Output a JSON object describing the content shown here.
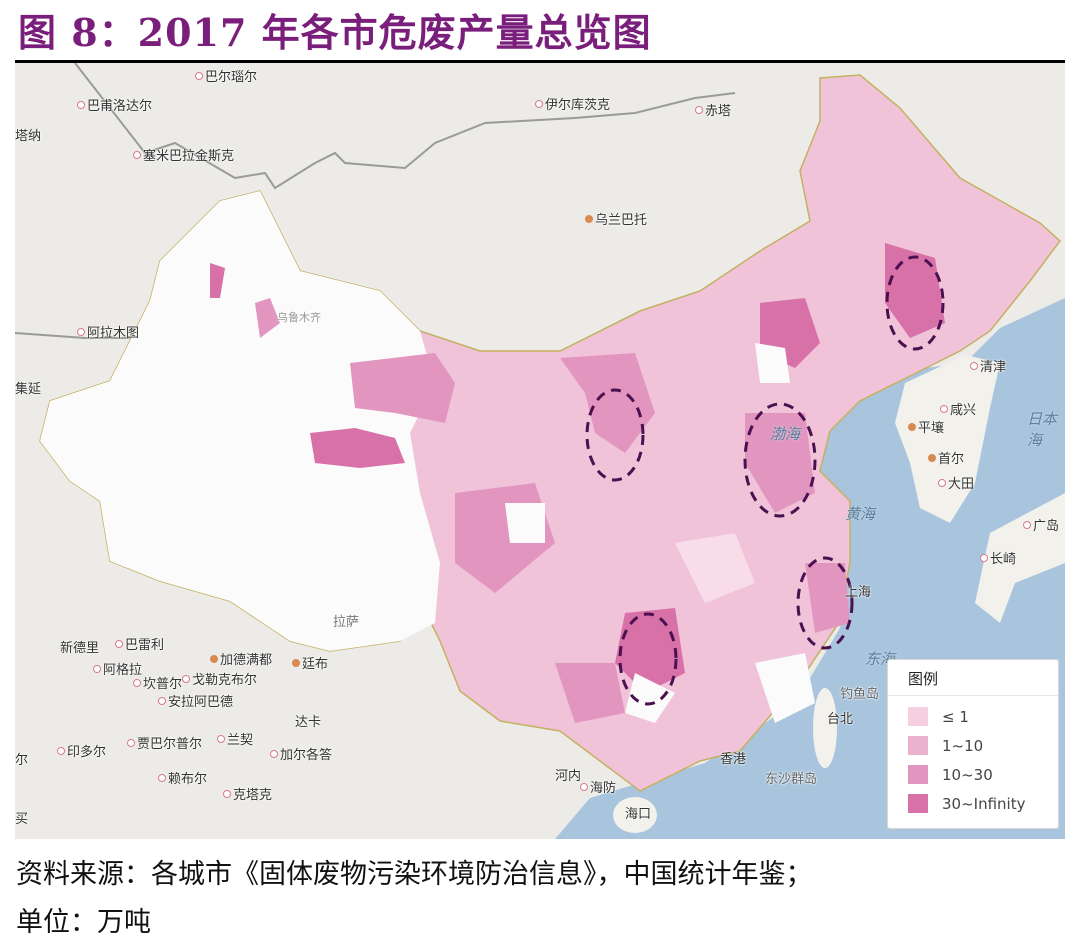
{
  "title": "图 8：2017 年各市危废产量总览图",
  "map": {
    "legend": {
      "title": "图例",
      "items": [
        {
          "label": "≤ 1",
          "color": "#f6cfe0"
        },
        {
          "label": "1~10",
          "color": "#ecb1cf"
        },
        {
          "label": "10~30",
          "color": "#e296bf"
        },
        {
          "label": "30~Infinity",
          "color": "#d771a8"
        }
      ]
    },
    "highlight_color": "#4a1050",
    "cities": [
      "巴尔瑙尔",
      "巴甫洛达尔",
      "伊尔库茨克",
      "赤塔",
      "塔纳",
      "塞米巴拉金斯克",
      "乌兰巴托",
      "阿拉木图",
      "集延",
      "清津",
      "咸兴",
      "平壤",
      "首尔",
      "大田",
      "广岛",
      "长崎",
      "上海",
      "钓鱼岛",
      "台北",
      "香港",
      "东沙群岛",
      "海口",
      "河内",
      "海防",
      "新德里",
      "巴雷利",
      "阿格拉",
      "加德满都",
      "廷布",
      "坎普尔",
      "戈勒克布尔",
      "安拉阿巴德",
      "达卡",
      "贾巴尔普尔",
      "兰契",
      "加尔各答",
      "印多尔",
      "赖布尔",
      "克塔克",
      "买",
      "尔",
      "拉萨",
      "乌鲁木齐"
    ],
    "seas": [
      "渤海",
      "黄海",
      "东海",
      "日本海"
    ]
  },
  "footer": {
    "source": "资料来源：各城市《固体废物污染环境防治信息》，中国统计年鉴；",
    "unit": "单位：万吨"
  }
}
